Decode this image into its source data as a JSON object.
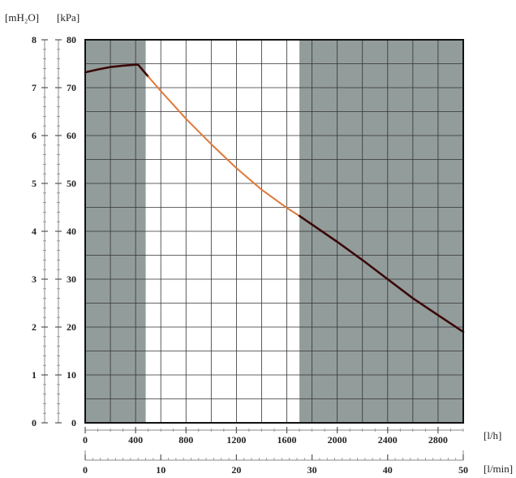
{
  "chart_data": {
    "type": "line",
    "title": "",
    "y_axes": [
      {
        "label": "[mH₂O]",
        "ticks": [
          0,
          1,
          2,
          3,
          4,
          5,
          6,
          7,
          8
        ],
        "ylim": [
          0,
          8
        ]
      },
      {
        "label": "[kPa]",
        "ticks": [
          0,
          10,
          20,
          30,
          40,
          50,
          60,
          70,
          80
        ],
        "ylim": [
          0,
          80
        ]
      }
    ],
    "x_axes": [
      {
        "label": "[l/h]",
        "ticks": [
          0,
          400,
          800,
          1200,
          1600,
          2000,
          2400,
          2800
        ],
        "xlim": [
          0,
          3000
        ]
      },
      {
        "label": "[l/min]",
        "ticks": [
          0,
          10,
          20,
          30,
          40,
          50
        ],
        "xlim": [
          0,
          50
        ]
      }
    ],
    "shaded_regions_lh": [
      [
        0,
        480
      ],
      [
        1700,
        3000
      ]
    ],
    "grid": true,
    "series": [
      {
        "x": [
          0,
          100,
          200,
          300,
          400,
          420,
          500,
          600,
          800,
          1000,
          1200,
          1400,
          1600,
          1700,
          1800,
          2000,
          2200,
          2400,
          2600,
          2800,
          3000
        ],
        "y": [
          73.2,
          73.8,
          74.3,
          74.6,
          74.8,
          74.8,
          72.3,
          69.3,
          63.5,
          58.2,
          53.2,
          48.7,
          44.9,
          43.2,
          41.4,
          37.8,
          34.0,
          30.0,
          26.0,
          22.5,
          19.0
        ],
        "segment_colors": {
          "inside_shaded": "#3a0808",
          "outside_shaded": "#e07838"
        }
      }
    ],
    "colors": {
      "shade": "#929c9a",
      "grid": "#333333",
      "plot_bg": "#ffffff",
      "frame": "#111111"
    }
  }
}
